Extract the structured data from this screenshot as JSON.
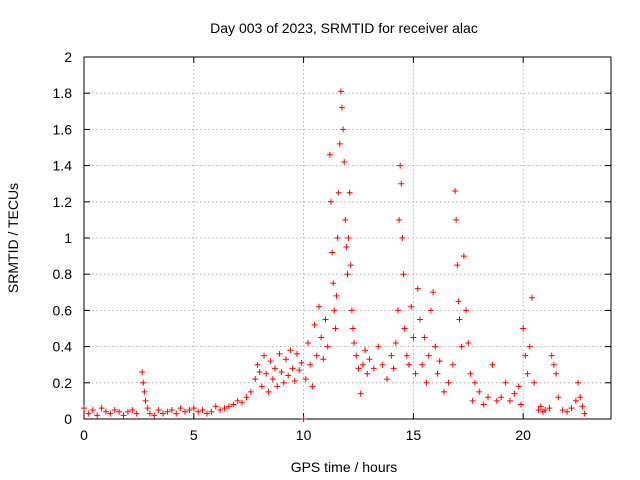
{
  "chart_data": {
    "type": "scatter",
    "title": "Day 003 of 2023, SRMTID for receiver alac",
    "xlabel": "GPS time / hours",
    "ylabel": "SRMTID / TECUs",
    "xlim": [
      0,
      24
    ],
    "ylim": [
      0,
      2
    ],
    "xticks": [
      0,
      5,
      10,
      15,
      20
    ],
    "xtick_labels": [
      "0",
      "5",
      "10",
      "15",
      "20"
    ],
    "yticks": [
      0,
      0.2,
      0.4,
      0.6,
      0.8,
      1,
      1.2,
      1.4,
      1.6,
      1.8,
      2
    ],
    "ytick_labels": [
      "0",
      "0.2",
      "0.4",
      "0.6",
      "0.8",
      "1",
      "1.2",
      "1.4",
      "1.6",
      "1.8",
      "2"
    ],
    "grid": true,
    "marker": "+",
    "marker_color": "#ff0000",
    "series": [
      {
        "name": "SRMTID",
        "points": [
          [
            0.0,
            0.06
          ],
          [
            0.2,
            0.03
          ],
          [
            0.4,
            0.05
          ],
          [
            0.6,
            0.02
          ],
          [
            0.8,
            0.06
          ],
          [
            1.0,
            0.04
          ],
          [
            1.2,
            0.03
          ],
          [
            1.4,
            0.05
          ],
          [
            1.6,
            0.04
          ],
          [
            1.8,
            0.02
          ],
          [
            2.0,
            0.04
          ],
          [
            2.2,
            0.05
          ],
          [
            2.4,
            0.03
          ],
          [
            2.65,
            0.26
          ],
          [
            2.7,
            0.2
          ],
          [
            2.75,
            0.15
          ],
          [
            2.8,
            0.1
          ],
          [
            2.9,
            0.06
          ],
          [
            3.0,
            0.03
          ],
          [
            3.2,
            0.02
          ],
          [
            3.4,
            0.05
          ],
          [
            3.6,
            0.03
          ],
          [
            3.8,
            0.04
          ],
          [
            4.0,
            0.05
          ],
          [
            4.2,
            0.03
          ],
          [
            4.4,
            0.06
          ],
          [
            4.6,
            0.04
          ],
          [
            4.8,
            0.05
          ],
          [
            5.0,
            0.06
          ],
          [
            5.2,
            0.04
          ],
          [
            5.4,
            0.05
          ],
          [
            5.6,
            0.03
          ],
          [
            5.8,
            0.04
          ],
          [
            6.0,
            0.07
          ],
          [
            6.2,
            0.05
          ],
          [
            6.4,
            0.06
          ],
          [
            6.6,
            0.07
          ],
          [
            6.8,
            0.08
          ],
          [
            7.0,
            0.1
          ],
          [
            7.2,
            0.09
          ],
          [
            7.4,
            0.12
          ],
          [
            7.6,
            0.15
          ],
          [
            7.8,
            0.22
          ],
          [
            7.9,
            0.3
          ],
          [
            8.0,
            0.26
          ],
          [
            8.1,
            0.18
          ],
          [
            8.2,
            0.35
          ],
          [
            8.3,
            0.25
          ],
          [
            8.4,
            0.15
          ],
          [
            8.5,
            0.32
          ],
          [
            8.6,
            0.22
          ],
          [
            8.7,
            0.28
          ],
          [
            8.8,
            0.18
          ],
          [
            8.9,
            0.36
          ],
          [
            9.0,
            0.26
          ],
          [
            9.1,
            0.2
          ],
          [
            9.2,
            0.33
          ],
          [
            9.3,
            0.24
          ],
          [
            9.4,
            0.38
          ],
          [
            9.5,
            0.28
          ],
          [
            9.6,
            0.21
          ],
          [
            9.7,
            0.36
          ],
          [
            9.8,
            0.27
          ],
          [
            9.9,
            0.31
          ],
          [
            10.0,
            0.0
          ],
          [
            10.1,
            0.22
          ],
          [
            10.2,
            0.42
          ],
          [
            10.3,
            0.3
          ],
          [
            10.4,
            0.18
          ],
          [
            10.5,
            0.52
          ],
          [
            10.6,
            0.35
          ],
          [
            10.7,
            0.62
          ],
          [
            10.8,
            0.45
          ],
          [
            10.9,
            0.33
          ],
          [
            11.0,
            0.55
          ],
          [
            11.1,
            0.4
          ],
          [
            11.2,
            1.46
          ],
          [
            11.25,
            1.2
          ],
          [
            11.3,
            0.92
          ],
          [
            11.35,
            0.75
          ],
          [
            11.4,
            0.6
          ],
          [
            11.45,
            0.5
          ],
          [
            11.5,
            0.68
          ],
          [
            11.55,
            1.0
          ],
          [
            11.6,
            1.25
          ],
          [
            11.65,
            1.52
          ],
          [
            11.7,
            1.81
          ],
          [
            11.75,
            1.72
          ],
          [
            11.8,
            1.6
          ],
          [
            11.85,
            1.42
          ],
          [
            11.9,
            1.1
          ],
          [
            11.95,
            0.95
          ],
          [
            12.0,
            0.8
          ],
          [
            12.05,
            1.0
          ],
          [
            12.1,
            1.25
          ],
          [
            12.15,
            0.85
          ],
          [
            12.2,
            0.6
          ],
          [
            12.25,
            0.5
          ],
          [
            12.3,
            0.42
          ],
          [
            12.4,
            0.35
          ],
          [
            12.5,
            0.28
          ],
          [
            12.6,
            0.14
          ],
          [
            12.7,
            0.3
          ],
          [
            12.8,
            0.38
          ],
          [
            12.9,
            0.25
          ],
          [
            13.0,
            0.33
          ],
          [
            13.2,
            0.28
          ],
          [
            13.4,
            0.4
          ],
          [
            13.6,
            0.3
          ],
          [
            13.8,
            0.22
          ],
          [
            14.0,
            0.35
          ],
          [
            14.1,
            0.28
          ],
          [
            14.2,
            0.42
          ],
          [
            14.3,
            0.6
          ],
          [
            14.35,
            1.1
          ],
          [
            14.4,
            1.4
          ],
          [
            14.45,
            1.3
          ],
          [
            14.5,
            1.0
          ],
          [
            14.55,
            0.8
          ],
          [
            14.6,
            0.5
          ],
          [
            14.7,
            0.35
          ],
          [
            14.8,
            0.3
          ],
          [
            14.9,
            0.62
          ],
          [
            15.0,
            0.45
          ],
          [
            15.1,
            0.25
          ],
          [
            15.2,
            0.72
          ],
          [
            15.3,
            0.55
          ],
          [
            15.4,
            0.3
          ],
          [
            15.5,
            0.45
          ],
          [
            15.6,
            0.2
          ],
          [
            15.7,
            0.35
          ],
          [
            15.8,
            0.6
          ],
          [
            15.9,
            0.7
          ],
          [
            16.0,
            0.4
          ],
          [
            16.1,
            0.25
          ],
          [
            16.2,
            0.32
          ],
          [
            16.4,
            0.15
          ],
          [
            16.6,
            0.2
          ],
          [
            16.8,
            0.3
          ],
          [
            16.9,
            1.26
          ],
          [
            16.95,
            1.1
          ],
          [
            17.0,
            0.85
          ],
          [
            17.05,
            0.65
          ],
          [
            17.1,
            0.55
          ],
          [
            17.2,
            0.4
          ],
          [
            17.3,
            0.9
          ],
          [
            17.4,
            0.6
          ],
          [
            17.5,
            0.42
          ],
          [
            17.6,
            0.25
          ],
          [
            17.7,
            0.1
          ],
          [
            17.8,
            0.2
          ],
          [
            18.0,
            0.15
          ],
          [
            18.2,
            0.08
          ],
          [
            18.4,
            0.12
          ],
          [
            18.6,
            0.3
          ],
          [
            18.8,
            0.1
          ],
          [
            19.0,
            0.12
          ],
          [
            19.2,
            0.2
          ],
          [
            19.4,
            0.1
          ],
          [
            19.6,
            0.14
          ],
          [
            19.8,
            0.18
          ],
          [
            19.9,
            0.08
          ],
          [
            20.0,
            0.5
          ],
          [
            20.1,
            0.35
          ],
          [
            20.2,
            0.25
          ],
          [
            20.3,
            0.4
          ],
          [
            20.4,
            0.67
          ],
          [
            20.5,
            0.2
          ],
          [
            20.7,
            0.05
          ],
          [
            20.8,
            0.07
          ],
          [
            20.9,
            0.04
          ],
          [
            21.0,
            0.05
          ],
          [
            21.2,
            0.06
          ],
          [
            21.3,
            0.35
          ],
          [
            21.4,
            0.3
          ],
          [
            21.5,
            0.25
          ],
          [
            21.6,
            0.12
          ],
          [
            21.8,
            0.05
          ],
          [
            22.0,
            0.04
          ],
          [
            22.2,
            0.06
          ],
          [
            22.4,
            0.1
          ],
          [
            22.5,
            0.2
          ],
          [
            22.6,
            0.12
          ],
          [
            22.7,
            0.07
          ],
          [
            22.8,
            0.03
          ]
        ]
      }
    ]
  }
}
